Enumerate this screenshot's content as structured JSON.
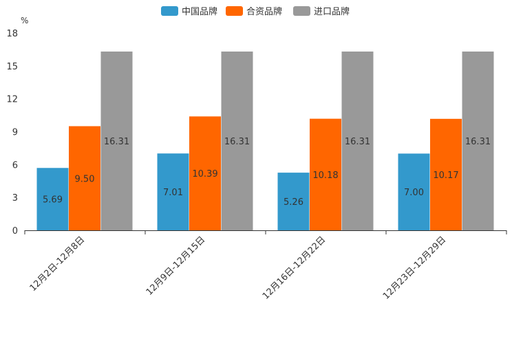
{
  "chart_data": {
    "type": "bar",
    "unit": "%",
    "categories": [
      "12月2日-12月8日",
      "12月9日-12月15日",
      "12月16日-12月22日",
      "12月23日-12月29日"
    ],
    "series": [
      {
        "name": "中国品牌",
        "color": "#3399cc",
        "values": [
          5.69,
          7.01,
          5.26,
          7.0
        ],
        "labels": [
          "5.69",
          "7.01",
          "5.26",
          "7.00"
        ]
      },
      {
        "name": "合资品牌",
        "color": "#ff6600",
        "values": [
          9.5,
          10.39,
          10.18,
          10.17
        ],
        "labels": [
          "9.50",
          "10.39",
          "10.18",
          "10.17"
        ]
      },
      {
        "name": "进口品牌",
        "color": "#999999",
        "values": [
          16.31,
          16.31,
          16.31,
          16.31
        ],
        "labels": [
          "16.31",
          "16.31",
          "16.31",
          "16.31"
        ]
      }
    ],
    "yticks": [
      "0",
      "3",
      "6",
      "9",
      "12",
      "15",
      "18"
    ],
    "ylim": [
      0,
      18
    ],
    "legend_position": "top-center",
    "grid": false
  }
}
